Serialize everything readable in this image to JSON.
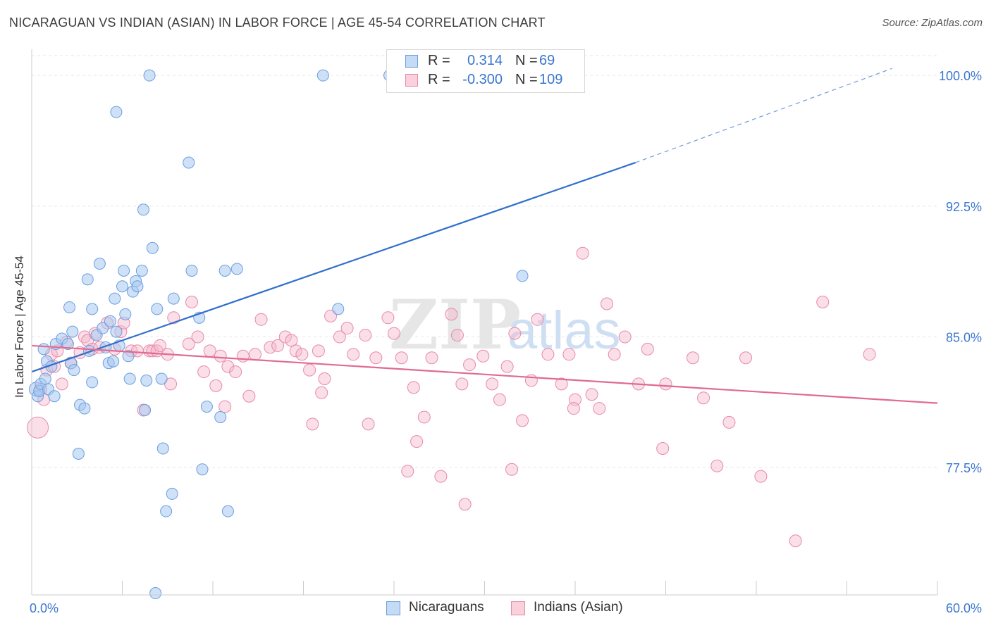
{
  "header": {
    "title": "NICARAGUAN VS INDIAN (ASIAN) IN LABOR FORCE | AGE 45-54 CORRELATION CHART",
    "source": "Source: ZipAtlas.com"
  },
  "watermark": {
    "zip": "ZIP",
    "atlas": "atlas"
  },
  "legend_top": {
    "rows": [
      {
        "r_label": "R =",
        "r_value": "0.314",
        "n_label": "N =",
        "n_value": "69"
      },
      {
        "r_label": "R =",
        "r_value": "-0.300",
        "n_label": "N =",
        "n_value": "109"
      }
    ]
  },
  "legend_bottom": {
    "series1": "Nicaraguans",
    "series2": "Indians (Asian)"
  },
  "colors": {
    "blue_fill": "#a8c8f0",
    "blue_stroke": "#6a9ee0",
    "blue_line": "#2f6fcc",
    "pink_fill": "#f5b8cb",
    "pink_stroke": "#e88aa8",
    "pink_line": "#e06a92",
    "tick_label": "#3a76d0",
    "grid": "#e6e6e6"
  },
  "chart_data": {
    "type": "scatter",
    "title": "NICARAGUAN VS INDIAN (ASIAN) IN LABOR FORCE | AGE 45-54 CORRELATION CHART",
    "xlabel": "",
    "ylabel": "In Labor Force | Age 45-54",
    "xlim": [
      0,
      60
    ],
    "ylim": [
      70.2,
      101.5
    ],
    "x_tick_labels": [
      "0.0%",
      "60.0%"
    ],
    "y_ticks": [
      77.5,
      85.0,
      92.5,
      100.0
    ],
    "y_tick_labels": [
      "77.5%",
      "85.0%",
      "92.5%",
      "100.0%"
    ],
    "series": [
      {
        "name": "Nicaraguans",
        "R": 0.314,
        "N": 69,
        "trend": {
          "x0": 0,
          "y0": 83.0,
          "x1": 40,
          "y1": 95.0,
          "dash_to_x": 57,
          "dash_to_y": 100.4
        },
        "points": [
          [
            0.3,
            82.0
          ],
          [
            0.4,
            81.6
          ],
          [
            0.5,
            81.9
          ],
          [
            0.6,
            82.3
          ],
          [
            0.8,
            84.3
          ],
          [
            0.9,
            82.6
          ],
          [
            1.0,
            83.6
          ],
          [
            1.1,
            82.0
          ],
          [
            1.3,
            83.3
          ],
          [
            1.5,
            81.6
          ],
          [
            1.6,
            84.6
          ],
          [
            2.0,
            84.9
          ],
          [
            2.4,
            84.6
          ],
          [
            2.5,
            86.7
          ],
          [
            2.6,
            83.5
          ],
          [
            2.7,
            85.3
          ],
          [
            2.8,
            83.1
          ],
          [
            3.1,
            78.3
          ],
          [
            3.2,
            81.1
          ],
          [
            3.5,
            80.9
          ],
          [
            3.7,
            88.3
          ],
          [
            3.8,
            84.2
          ],
          [
            4.0,
            82.4
          ],
          [
            4.0,
            86.6
          ],
          [
            4.3,
            85.1
          ],
          [
            4.5,
            89.2
          ],
          [
            4.7,
            85.5
          ],
          [
            4.9,
            84.4
          ],
          [
            5.1,
            83.5
          ],
          [
            5.2,
            85.9
          ],
          [
            5.4,
            83.6
          ],
          [
            5.5,
            87.2
          ],
          [
            5.6,
            85.3
          ],
          [
            5.6,
            97.9
          ],
          [
            5.8,
            84.5
          ],
          [
            6.0,
            87.9
          ],
          [
            6.1,
            88.8
          ],
          [
            6.2,
            86.3
          ],
          [
            6.4,
            83.9
          ],
          [
            6.5,
            82.6
          ],
          [
            6.7,
            87.6
          ],
          [
            6.9,
            88.2
          ],
          [
            7.0,
            87.9
          ],
          [
            7.3,
            88.8
          ],
          [
            7.4,
            92.3
          ],
          [
            7.5,
            80.8
          ],
          [
            7.6,
            82.5
          ],
          [
            7.8,
            100.0
          ],
          [
            8.0,
            90.1
          ],
          [
            8.2,
            70.3
          ],
          [
            8.3,
            86.6
          ],
          [
            8.6,
            82.6
          ],
          [
            8.7,
            78.6
          ],
          [
            8.9,
            75.0
          ],
          [
            9.3,
            76.0
          ],
          [
            9.4,
            87.2
          ],
          [
            10.4,
            95.0
          ],
          [
            10.6,
            88.8
          ],
          [
            11.1,
            86.1
          ],
          [
            11.3,
            77.4
          ],
          [
            11.6,
            81.0
          ],
          [
            12.5,
            80.4
          ],
          [
            12.8,
            88.8
          ],
          [
            13.0,
            75.0
          ],
          [
            13.6,
            88.9
          ],
          [
            19.3,
            100.0
          ],
          [
            20.3,
            86.6
          ],
          [
            23.7,
            100.0
          ],
          [
            32.5,
            88.5
          ]
        ]
      },
      {
        "name": "Indians (Asian)",
        "R": -0.3,
        "N": 109,
        "trend": {
          "x0": 0,
          "y0": 84.5,
          "x1": 60,
          "y1": 81.2
        },
        "points": [
          [
            0.4,
            79.8
          ],
          [
            0.6,
            82.0
          ],
          [
            0.8,
            81.4
          ],
          [
            1.0,
            83.1
          ],
          [
            1.3,
            84.0
          ],
          [
            1.5,
            83.3
          ],
          [
            1.7,
            84.2
          ],
          [
            2.0,
            82.3
          ],
          [
            2.3,
            84.7
          ],
          [
            2.6,
            83.5
          ],
          [
            3.2,
            84.1
          ],
          [
            3.5,
            85.0
          ],
          [
            3.7,
            84.8
          ],
          [
            4.0,
            84.3
          ],
          [
            4.2,
            85.2
          ],
          [
            4.5,
            84.4
          ],
          [
            5.0,
            85.8
          ],
          [
            5.5,
            84.3
          ],
          [
            5.9,
            85.3
          ],
          [
            6.1,
            85.8
          ],
          [
            6.6,
            84.2
          ],
          [
            7.0,
            84.2
          ],
          [
            7.4,
            80.8
          ],
          [
            7.8,
            84.2
          ],
          [
            8.0,
            84.2
          ],
          [
            8.3,
            84.2
          ],
          [
            8.5,
            84.5
          ],
          [
            9.0,
            84.0
          ],
          [
            9.2,
            82.3
          ],
          [
            9.4,
            86.1
          ],
          [
            10.4,
            84.6
          ],
          [
            10.6,
            87.0
          ],
          [
            11.0,
            85.0
          ],
          [
            11.4,
            83.0
          ],
          [
            11.8,
            84.2
          ],
          [
            12.2,
            82.2
          ],
          [
            12.5,
            83.9
          ],
          [
            13.0,
            83.3
          ],
          [
            13.5,
            83.0
          ],
          [
            14.0,
            83.9
          ],
          [
            14.4,
            81.6
          ],
          [
            14.8,
            84.0
          ],
          [
            15.2,
            86.0
          ],
          [
            15.8,
            84.4
          ],
          [
            16.3,
            84.5
          ],
          [
            16.8,
            85.0
          ],
          [
            17.2,
            84.8
          ],
          [
            17.5,
            84.2
          ],
          [
            17.9,
            84.0
          ],
          [
            18.4,
            83.1
          ],
          [
            18.6,
            80.0
          ],
          [
            19.0,
            84.2
          ],
          [
            19.4,
            82.6
          ],
          [
            19.8,
            86.2
          ],
          [
            20.4,
            85.0
          ],
          [
            20.9,
            85.5
          ],
          [
            21.3,
            84.0
          ],
          [
            22.1,
            85.1
          ],
          [
            22.3,
            80.0
          ],
          [
            22.8,
            83.8
          ],
          [
            23.6,
            86.1
          ],
          [
            24.0,
            85.2
          ],
          [
            24.5,
            83.8
          ],
          [
            24.9,
            77.3
          ],
          [
            25.3,
            82.1
          ],
          [
            25.5,
            79.0
          ],
          [
            26.0,
            80.4
          ],
          [
            26.5,
            83.8
          ],
          [
            27.1,
            77.0
          ],
          [
            27.8,
            86.3
          ],
          [
            28.2,
            85.1
          ],
          [
            28.5,
            82.3
          ],
          [
            29.0,
            83.4
          ],
          [
            29.9,
            83.9
          ],
          [
            30.5,
            82.3
          ],
          [
            31.0,
            81.4
          ],
          [
            31.5,
            83.3
          ],
          [
            31.8,
            77.4
          ],
          [
            32.0,
            85.2
          ],
          [
            32.5,
            80.2
          ],
          [
            33.1,
            82.5
          ],
          [
            33.5,
            86.0
          ],
          [
            34.2,
            84.0
          ],
          [
            35.1,
            82.3
          ],
          [
            35.6,
            84.0
          ],
          [
            36.0,
            81.4
          ],
          [
            36.5,
            89.8
          ],
          [
            37.1,
            81.7
          ],
          [
            37.6,
            80.9
          ],
          [
            38.1,
            86.9
          ],
          [
            38.6,
            84.0
          ],
          [
            39.3,
            85.0
          ],
          [
            40.2,
            82.3
          ],
          [
            40.8,
            84.3
          ],
          [
            41.8,
            78.6
          ],
          [
            42.0,
            82.3
          ],
          [
            43.8,
            83.8
          ],
          [
            44.5,
            81.5
          ],
          [
            45.4,
            77.6
          ],
          [
            46.2,
            80.1
          ],
          [
            47.3,
            83.8
          ],
          [
            48.3,
            77.0
          ],
          [
            50.6,
            73.3
          ],
          [
            52.4,
            87.0
          ],
          [
            55.5,
            84.0
          ],
          [
            35.9,
            80.9
          ],
          [
            19.2,
            81.8
          ],
          [
            28.7,
            75.4
          ],
          [
            12.8,
            81.0
          ]
        ]
      }
    ]
  }
}
